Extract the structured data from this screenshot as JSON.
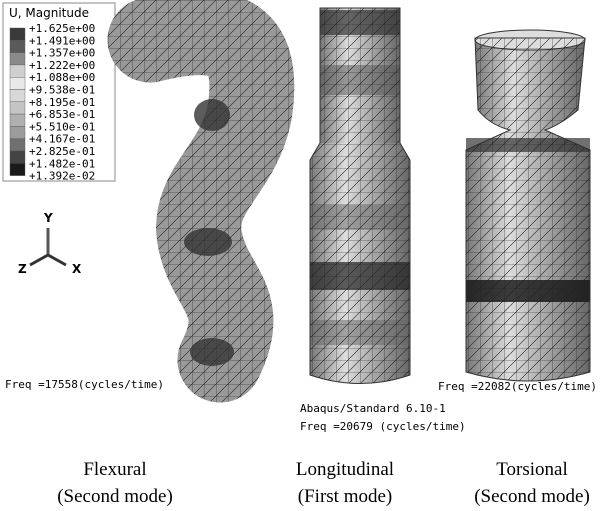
{
  "legend": {
    "title": "U, Magnitude",
    "labels": [
      "+1.625e+00",
      "+1.491e+00",
      "+1.357e+00",
      "+1.222e+00",
      "+1.088e+00",
      "+9.538e-01",
      "+8.195e-01",
      "+6.853e-01",
      "+5.510e-01",
      "+4.167e-01",
      "+2.825e-01",
      "+1.482e-01",
      "+1.392e-02"
    ]
  },
  "triad": {
    "y": "Y",
    "z": "Z",
    "x": "X"
  },
  "solver": "Abaqus/Standard 6.10-1",
  "models": [
    {
      "freq": "Freq =17558(cycles/time)",
      "caption": [
        "Flexural",
        "(Second mode)"
      ]
    },
    {
      "freq": "Freq =20679 (cycles/time)",
      "caption": [
        "Longitudinal",
        "(First mode)"
      ]
    },
    {
      "freq": "Freq =22082(cycles/time)",
      "caption": [
        "Torsional",
        "(Second mode)"
      ]
    }
  ]
}
